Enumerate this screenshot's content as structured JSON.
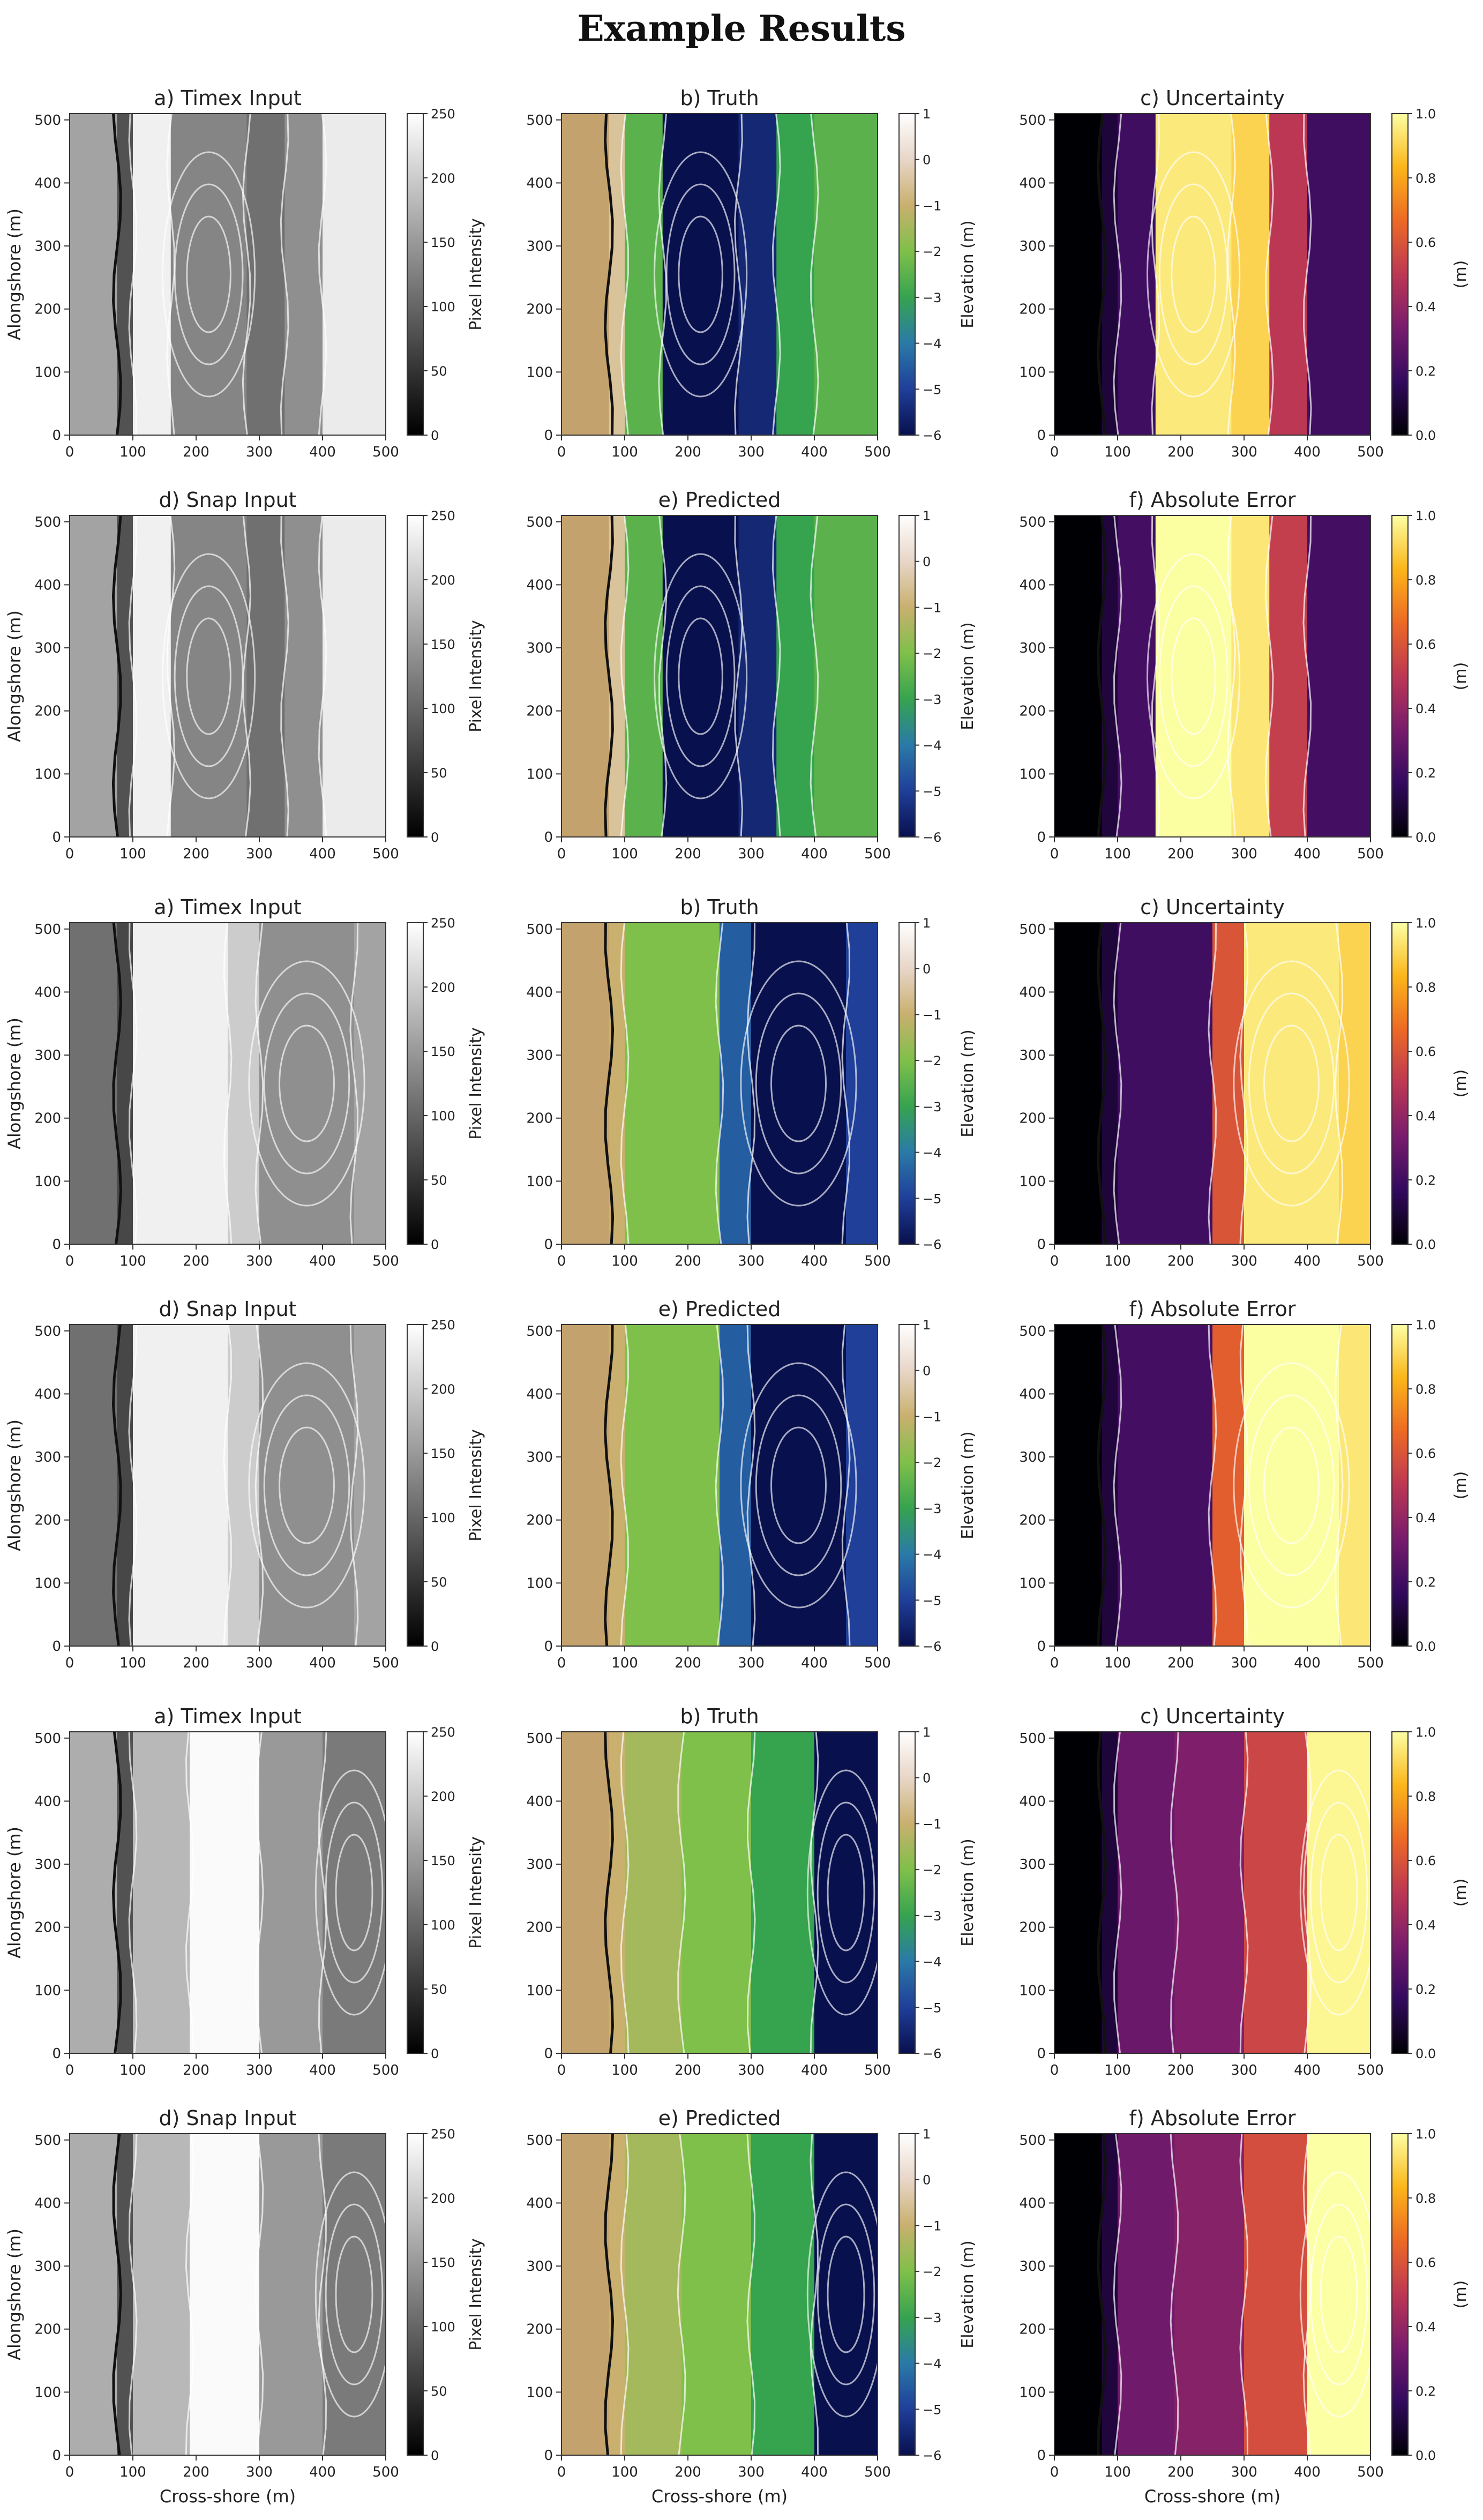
{
  "title": "Example Results",
  "col_kinds": [
    "gray",
    "elev",
    "err"
  ],
  "colormaps": {
    "gray": {
      "stops": [
        "#000000",
        "#ffffff"
      ],
      "range": [
        0,
        250
      ],
      "ticks": [
        0,
        50,
        100,
        150,
        200,
        250
      ],
      "label": "Pixel Intensity"
    },
    "elev": {
      "stops": [
        "#08104e",
        "#1f3f99",
        "#2a7aa8",
        "#36a34f",
        "#7fc04a",
        "#c9b06e",
        "#e8d6c8",
        "#ffffff"
      ],
      "range": [
        -6,
        1
      ],
      "ticks": [
        -6,
        -5,
        -4,
        -3,
        -2,
        -1,
        0,
        1
      ],
      "label": "Elevation (m)",
      "land_color": "#c4a26d"
    },
    "err": {
      "stops": [
        "#000004",
        "#320a5e",
        "#781c6d",
        "#bc3754",
        "#ed6925",
        "#fbb61a",
        "#fcffa4"
      ],
      "range": [
        0,
        1
      ],
      "ticks": [
        "0.0",
        "0.2",
        "0.4",
        "0.6",
        "0.8",
        "1.0"
      ],
      "label": "(m)"
    }
  },
  "axes": {
    "x_ticks": [
      0,
      100,
      200,
      300,
      400,
      500
    ],
    "y_ticks": [
      0,
      100,
      200,
      300,
      400,
      500
    ],
    "xlabel": "Cross-shore (m)",
    "ylabel": "Alongshore (m)"
  },
  "panels": [
    {
      "title": "a) Timex Input"
    },
    {
      "title": "b) Truth"
    },
    {
      "title": "c) Uncertainty"
    },
    {
      "title": "d) Snap Input"
    },
    {
      "title": "e) Predicted"
    },
    {
      "title": "f) Absolute Error"
    },
    {
      "title": "a) Timex Input"
    },
    {
      "title": "b) Truth"
    },
    {
      "title": "c) Uncertainty"
    },
    {
      "title": "d) Snap Input"
    },
    {
      "title": "e) Predicted"
    },
    {
      "title": "f) Absolute Error"
    },
    {
      "title": "a) Timex Input"
    },
    {
      "title": "b) Truth"
    },
    {
      "title": "c) Uncertainty"
    },
    {
      "title": "d) Snap Input"
    },
    {
      "title": "e) Predicted"
    },
    {
      "title": "f) Absolute Error"
    }
  ],
  "chart_data": {
    "type": "heatmap",
    "xlim": [
      0,
      500
    ],
    "ylim": [
      0,
      510
    ],
    "examples": [
      {
        "bands": [
          {
            "x": 0,
            "w": 75,
            "gray": 160,
            "elev": 1.0,
            "err": 0.0
          },
          {
            "x": 75,
            "w": 25,
            "gray": 80,
            "elev": -0.5,
            "err": 0.1
          },
          {
            "x": 100,
            "w": 60,
            "gray": 235,
            "elev": -2.5,
            "err": 0.2
          },
          {
            "x": 160,
            "w": 120,
            "gray": 130,
            "elev": -6.0,
            "err": 0.95
          },
          {
            "x": 280,
            "w": 60,
            "gray": 110,
            "elev": -5.5,
            "err": 0.9
          },
          {
            "x": 340,
            "w": 60,
            "gray": 140,
            "elev": -3.0,
            "err": 0.5
          },
          {
            "x": 400,
            "w": 100,
            "gray": 230,
            "elev": -2.5,
            "err": 0.2
          }
        ]
      },
      {
        "bands": [
          {
            "x": 0,
            "w": 75,
            "gray": 110,
            "elev": 1.0,
            "err": 0.0
          },
          {
            "x": 75,
            "w": 25,
            "gray": 70,
            "elev": -1.0,
            "err": 0.1
          },
          {
            "x": 100,
            "w": 150,
            "gray": 235,
            "elev": -2.0,
            "err": 0.2
          },
          {
            "x": 250,
            "w": 50,
            "gray": 200,
            "elev": -4.5,
            "err": 0.6
          },
          {
            "x": 300,
            "w": 150,
            "gray": 140,
            "elev": -6.0,
            "err": 0.95
          },
          {
            "x": 450,
            "w": 50,
            "gray": 160,
            "elev": -5.0,
            "err": 0.9
          }
        ]
      },
      {
        "bands": [
          {
            "x": 0,
            "w": 75,
            "gray": 170,
            "elev": 1.0,
            "err": 0.0
          },
          {
            "x": 75,
            "w": 25,
            "gray": 80,
            "elev": -1.0,
            "err": 0.1
          },
          {
            "x": 100,
            "w": 90,
            "gray": 180,
            "elev": -1.5,
            "err": 0.3
          },
          {
            "x": 190,
            "w": 110,
            "gray": 245,
            "elev": -2.0,
            "err": 0.35
          },
          {
            "x": 300,
            "w": 100,
            "gray": 150,
            "elev": -3.0,
            "err": 0.55
          },
          {
            "x": 400,
            "w": 100,
            "gray": 120,
            "elev": -6.0,
            "err": 0.98
          }
        ]
      }
    ]
  }
}
